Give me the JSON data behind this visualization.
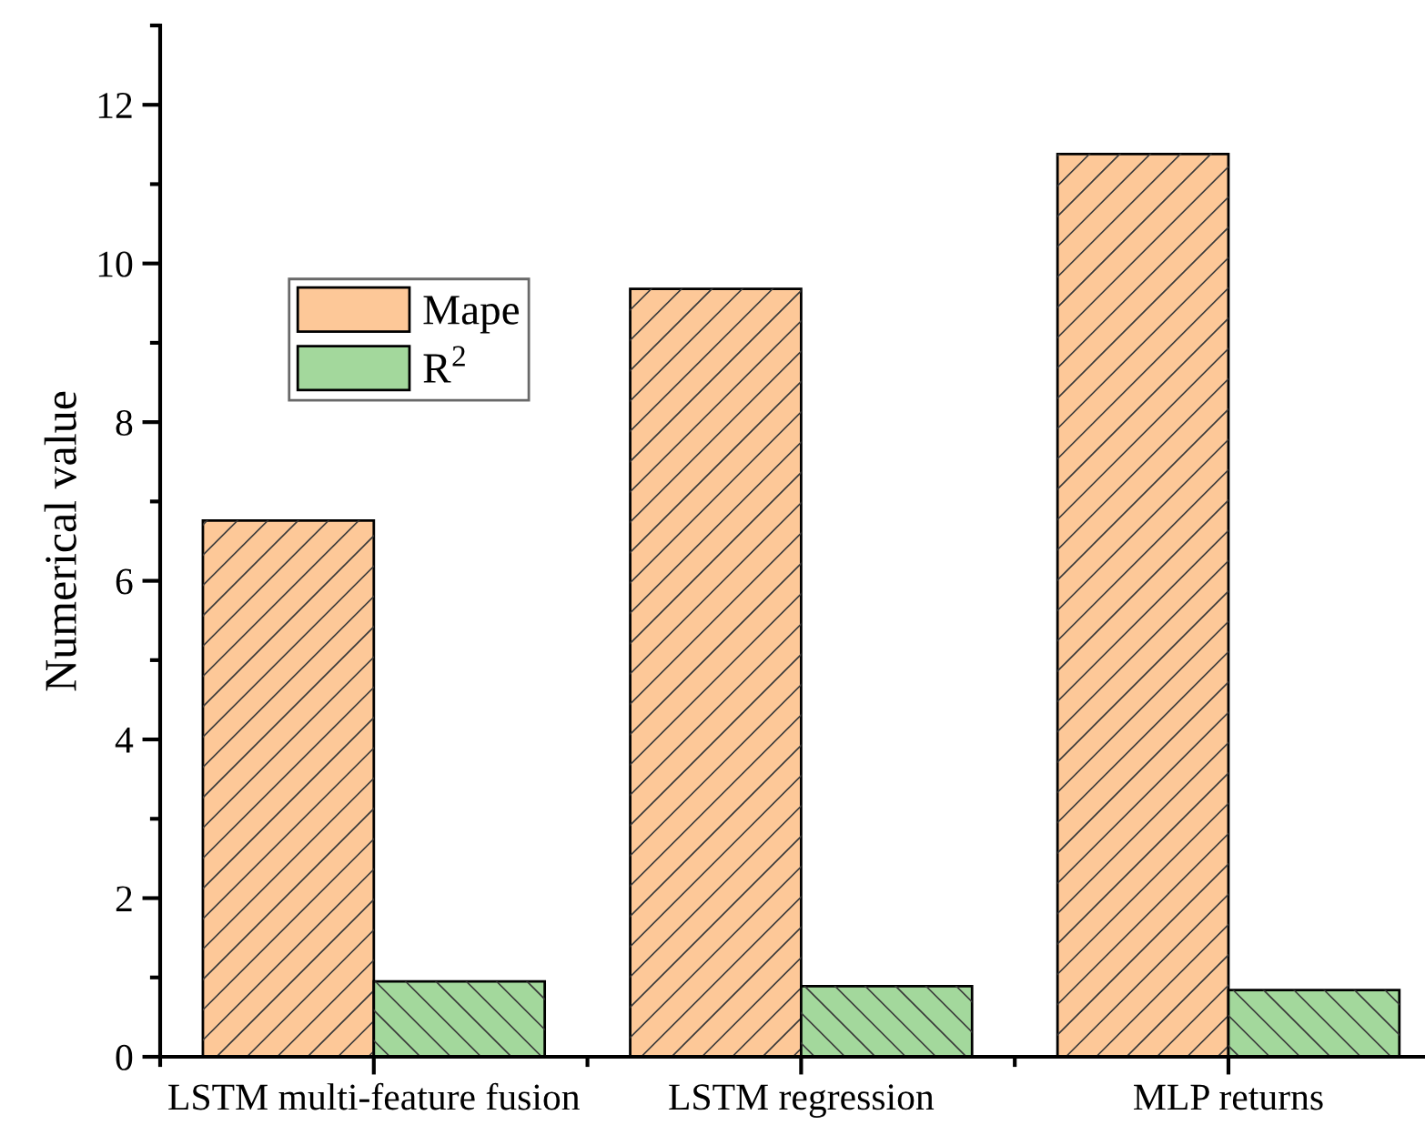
{
  "chart_data": {
    "type": "bar",
    "ylabel": "Numerical value",
    "categories": [
      "LSTM multi-feature fusion",
      "LSTM regression",
      "MLP returns"
    ],
    "series": [
      {
        "name": "Mape",
        "color": "#fdc898",
        "values": [
          6.76,
          9.68,
          11.38
        ]
      },
      {
        "name": "R$^{2}$",
        "color": "#a3d89c",
        "values": [
          0.95,
          0.89,
          0.84
        ]
      }
    ],
    "ylim": [
      0,
      13
    ],
    "yticks": [
      0,
      2,
      4,
      6,
      8,
      10,
      12
    ],
    "grid": false,
    "legend": "left"
  }
}
